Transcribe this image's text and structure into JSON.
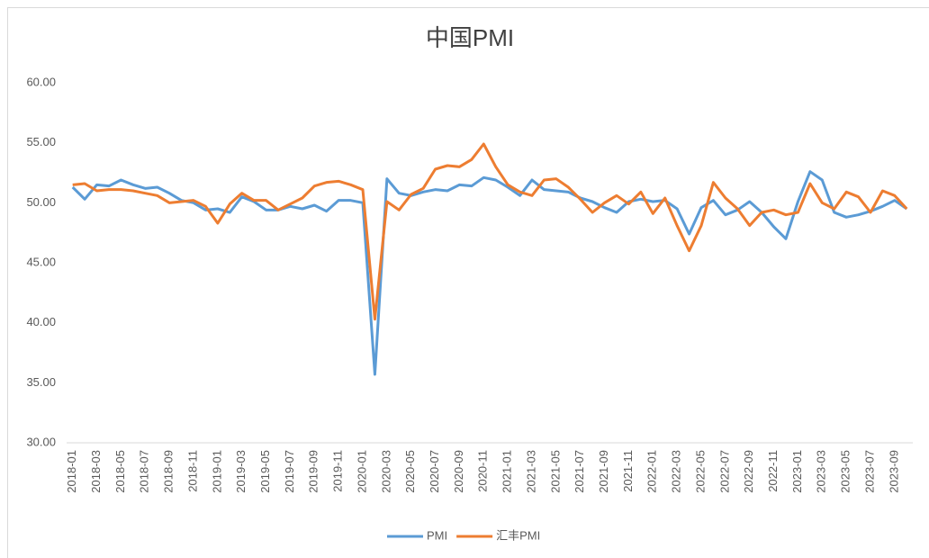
{
  "chart_data": {
    "type": "line",
    "title": "中国PMI",
    "categories": [
      "2018-01",
      null,
      "2018-03",
      null,
      "2018-05",
      null,
      "2018-07",
      null,
      "2018-09",
      null,
      "2018-11",
      null,
      "2019-01",
      null,
      "2019-03",
      null,
      "2019-05",
      null,
      "2019-07",
      null,
      "2019-09",
      null,
      "2019-11",
      null,
      "2020-01",
      null,
      "2020-03",
      null,
      "2020-05",
      null,
      "2020-07",
      null,
      "2020-09",
      null,
      "2020-11",
      null,
      "2021-01",
      null,
      "2021-03",
      null,
      "2021-05",
      null,
      "2021-07",
      null,
      "2021-09",
      null,
      "2021-11",
      null,
      "2022-01",
      null,
      "2022-03",
      null,
      "2022-05",
      null,
      "2022-07",
      null,
      "2022-09",
      null,
      "2022-11",
      null,
      "2023-01",
      null,
      "2023-03",
      null,
      "2023-05",
      null,
      "2023-07",
      null,
      "2023-09",
      null
    ],
    "series": [
      {
        "name": "PMI",
        "color": "#5b9bd5",
        "values": [
          51.3,
          50.3,
          51.5,
          51.4,
          51.9,
          51.5,
          51.2,
          51.3,
          50.8,
          50.2,
          50.0,
          49.4,
          49.5,
          49.2,
          50.5,
          50.1,
          49.4,
          49.4,
          49.7,
          49.5,
          49.8,
          49.3,
          50.2,
          50.2,
          50.0,
          35.7,
          52.0,
          50.8,
          50.6,
          50.9,
          51.1,
          51.0,
          51.5,
          51.4,
          52.1,
          51.9,
          51.3,
          50.6,
          51.9,
          51.1,
          51.0,
          50.9,
          50.4,
          50.1,
          49.6,
          49.2,
          50.1,
          50.3,
          50.1,
          50.2,
          49.5,
          47.4,
          49.6,
          50.2,
          49.0,
          49.4,
          50.1,
          49.2,
          48.0,
          47.0,
          50.1,
          52.6,
          51.9,
          49.2,
          48.8,
          49.0,
          49.3,
          49.7,
          50.2,
          49.5
        ]
      },
      {
        "name": "汇丰PMI",
        "color": "#ed7d31",
        "values": [
          51.5,
          51.6,
          51.0,
          51.1,
          51.1,
          51.0,
          50.8,
          50.6,
          50.0,
          50.1,
          50.2,
          49.7,
          48.3,
          49.9,
          50.8,
          50.2,
          50.2,
          49.4,
          49.9,
          50.4,
          51.4,
          51.7,
          51.8,
          51.5,
          51.1,
          40.3,
          50.1,
          49.4,
          50.7,
          51.2,
          52.8,
          53.1,
          53.0,
          53.6,
          54.9,
          53.0,
          51.5,
          50.9,
          50.6,
          51.9,
          52.0,
          51.3,
          50.3,
          49.2,
          50.0,
          50.6,
          49.9,
          50.9,
          49.1,
          50.4,
          48.1,
          46.0,
          48.1,
          51.7,
          50.4,
          49.5,
          48.1,
          49.2,
          49.4,
          49.0,
          49.2,
          51.6,
          50.0,
          49.5,
          50.9,
          50.5,
          49.2,
          51.0,
          50.6,
          49.5
        ]
      }
    ],
    "ylim": [
      30,
      60
    ],
    "yticks": [
      {
        "value": 30,
        "label": "30.00"
      },
      {
        "value": 35,
        "label": "35.00"
      },
      {
        "value": 40,
        "label": "40.00"
      },
      {
        "value": 45,
        "label": "45.00"
      },
      {
        "value": 50,
        "label": "50.00"
      },
      {
        "value": 55,
        "label": "55.00"
      },
      {
        "value": 60,
        "label": "60.00"
      }
    ],
    "grid": false,
    "legend": "bottom"
  }
}
